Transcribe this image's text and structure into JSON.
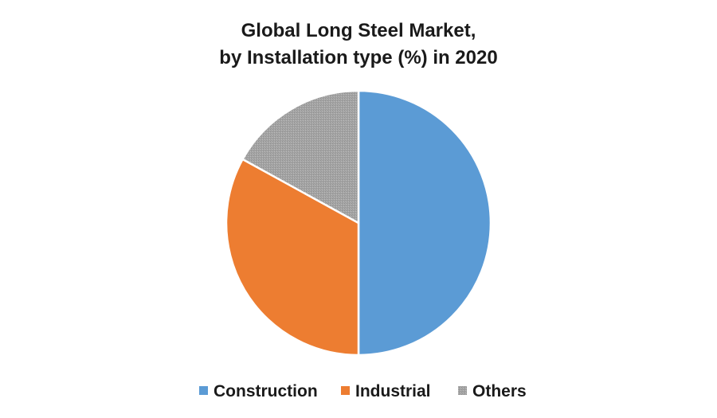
{
  "chart_data": {
    "type": "pie",
    "title_lines": [
      "Global Long Steel Market,",
      "by Installation type (%) in 2020"
    ],
    "categories": [
      "Construction",
      "Industrial",
      "Others"
    ],
    "values": [
      50,
      33,
      17
    ],
    "colors": [
      "#5B9BD5",
      "#ED7D31",
      "#A5A5A5"
    ],
    "legend_position": "bottom"
  }
}
